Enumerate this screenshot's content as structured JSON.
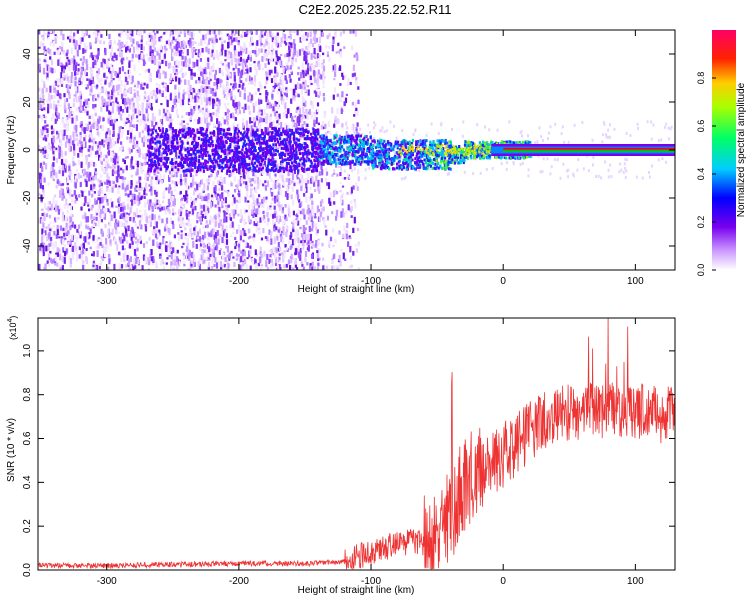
{
  "title": "C2E2.2025.235.22.52.R11",
  "chart_data": [
    {
      "type": "heatmap",
      "xlabel": "Height of straight line (km)",
      "ylabel": "Frequency (Hz)",
      "xlim": [
        -352,
        130
      ],
      "ylim": [
        -50,
        50
      ],
      "xticks": [
        -300,
        -200,
        -100,
        0,
        100
      ],
      "yticks": [
        -40,
        -20,
        0,
        20,
        40
      ],
      "colorbar": {
        "label": "Normalized spectral amplitude",
        "range": [
          0.0,
          1.0
        ],
        "ticks": [
          "0.0",
          "0.2",
          "0.4",
          "0.6",
          "0.8"
        ],
        "colormap": [
          "#ffffff",
          "#7700ee",
          "#0000ff",
          "#00ffff",
          "#00ff00",
          "#ffff00",
          "#ff0000",
          "#ff0088"
        ]
      },
      "features": {
        "noise_region_x": [
          -352,
          -120
        ],
        "tonal_line_frequency_hz": 0,
        "tonal_line_start_x": 0,
        "line_colors": [
          "#ff0000",
          "#00cc00"
        ]
      }
    },
    {
      "type": "line",
      "xlabel": "Height of straight line (km)",
      "ylabel": "SNR (10 * v/v)",
      "yunit": "(x10",
      "yunit_exp": "4",
      "xlim": [
        -352,
        130
      ],
      "ylim": [
        0,
        1.15
      ],
      "xticks": [
        -300,
        -200,
        -100,
        0,
        100
      ],
      "yticks": [
        "0.0",
        "0.2",
        "0.4",
        "0.6",
        "0.8",
        "1.0"
      ],
      "color": "#ee3333",
      "x": [
        -352,
        -300,
        -250,
        -200,
        -150,
        -125,
        -110,
        -100,
        -90,
        -80,
        -70,
        -60,
        -50,
        -45,
        -40,
        -35,
        -30,
        -25,
        -20,
        -15,
        -10,
        -5,
        0,
        10,
        20,
        30,
        40,
        50,
        60,
        70,
        80,
        90,
        100,
        110,
        120,
        130
      ],
      "y": [
        0.02,
        0.02,
        0.025,
        0.03,
        0.03,
        0.035,
        0.06,
        0.08,
        0.1,
        0.12,
        0.13,
        0.12,
        0.15,
        0.2,
        0.25,
        0.32,
        0.38,
        0.42,
        0.45,
        0.47,
        0.5,
        0.5,
        0.52,
        0.58,
        0.64,
        0.68,
        0.71,
        0.72,
        0.72,
        0.73,
        0.73,
        0.72,
        0.72,
        0.74,
        0.7,
        0.72
      ]
    }
  ]
}
